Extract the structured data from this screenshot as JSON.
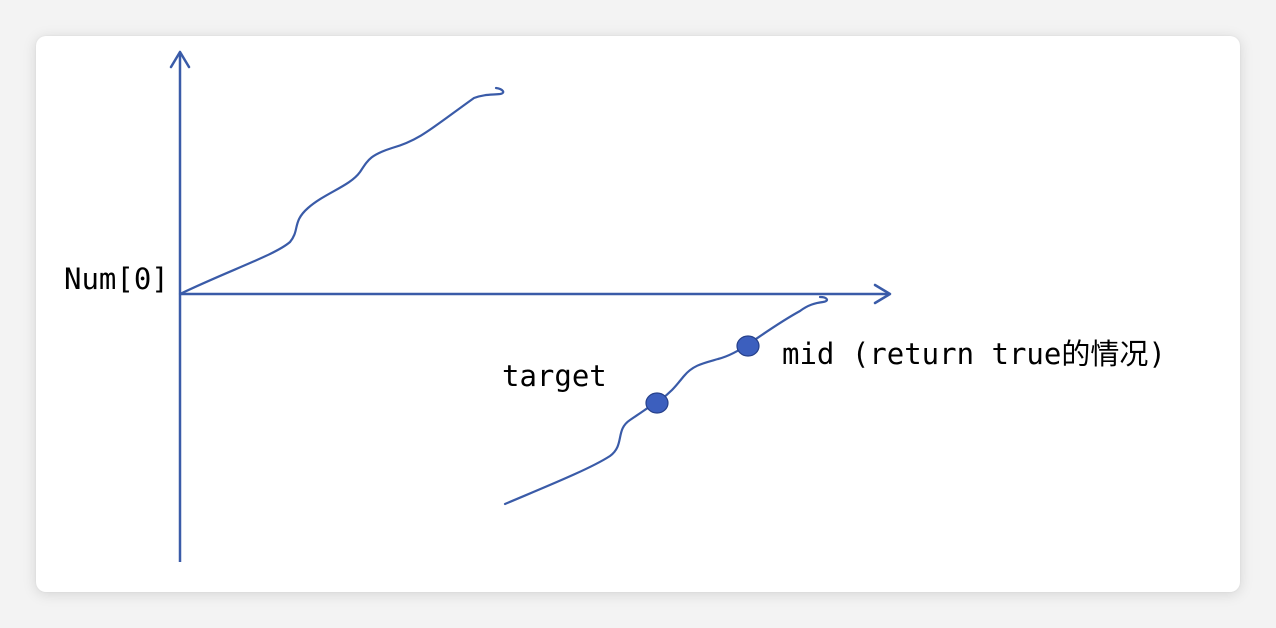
{
  "labels": {
    "origin": "Num[0]",
    "target": "target",
    "mid": "mid (return true的情况)"
  },
  "colors": {
    "line": "#3a5ba8",
    "point_fill": "#3c5fbe",
    "point_stroke": "#26408a",
    "card": "#ffffff",
    "background": "#f3f3f3"
  },
  "icons": [
    "axis-arrow-up-icon",
    "axis-arrow-right-icon"
  ]
}
